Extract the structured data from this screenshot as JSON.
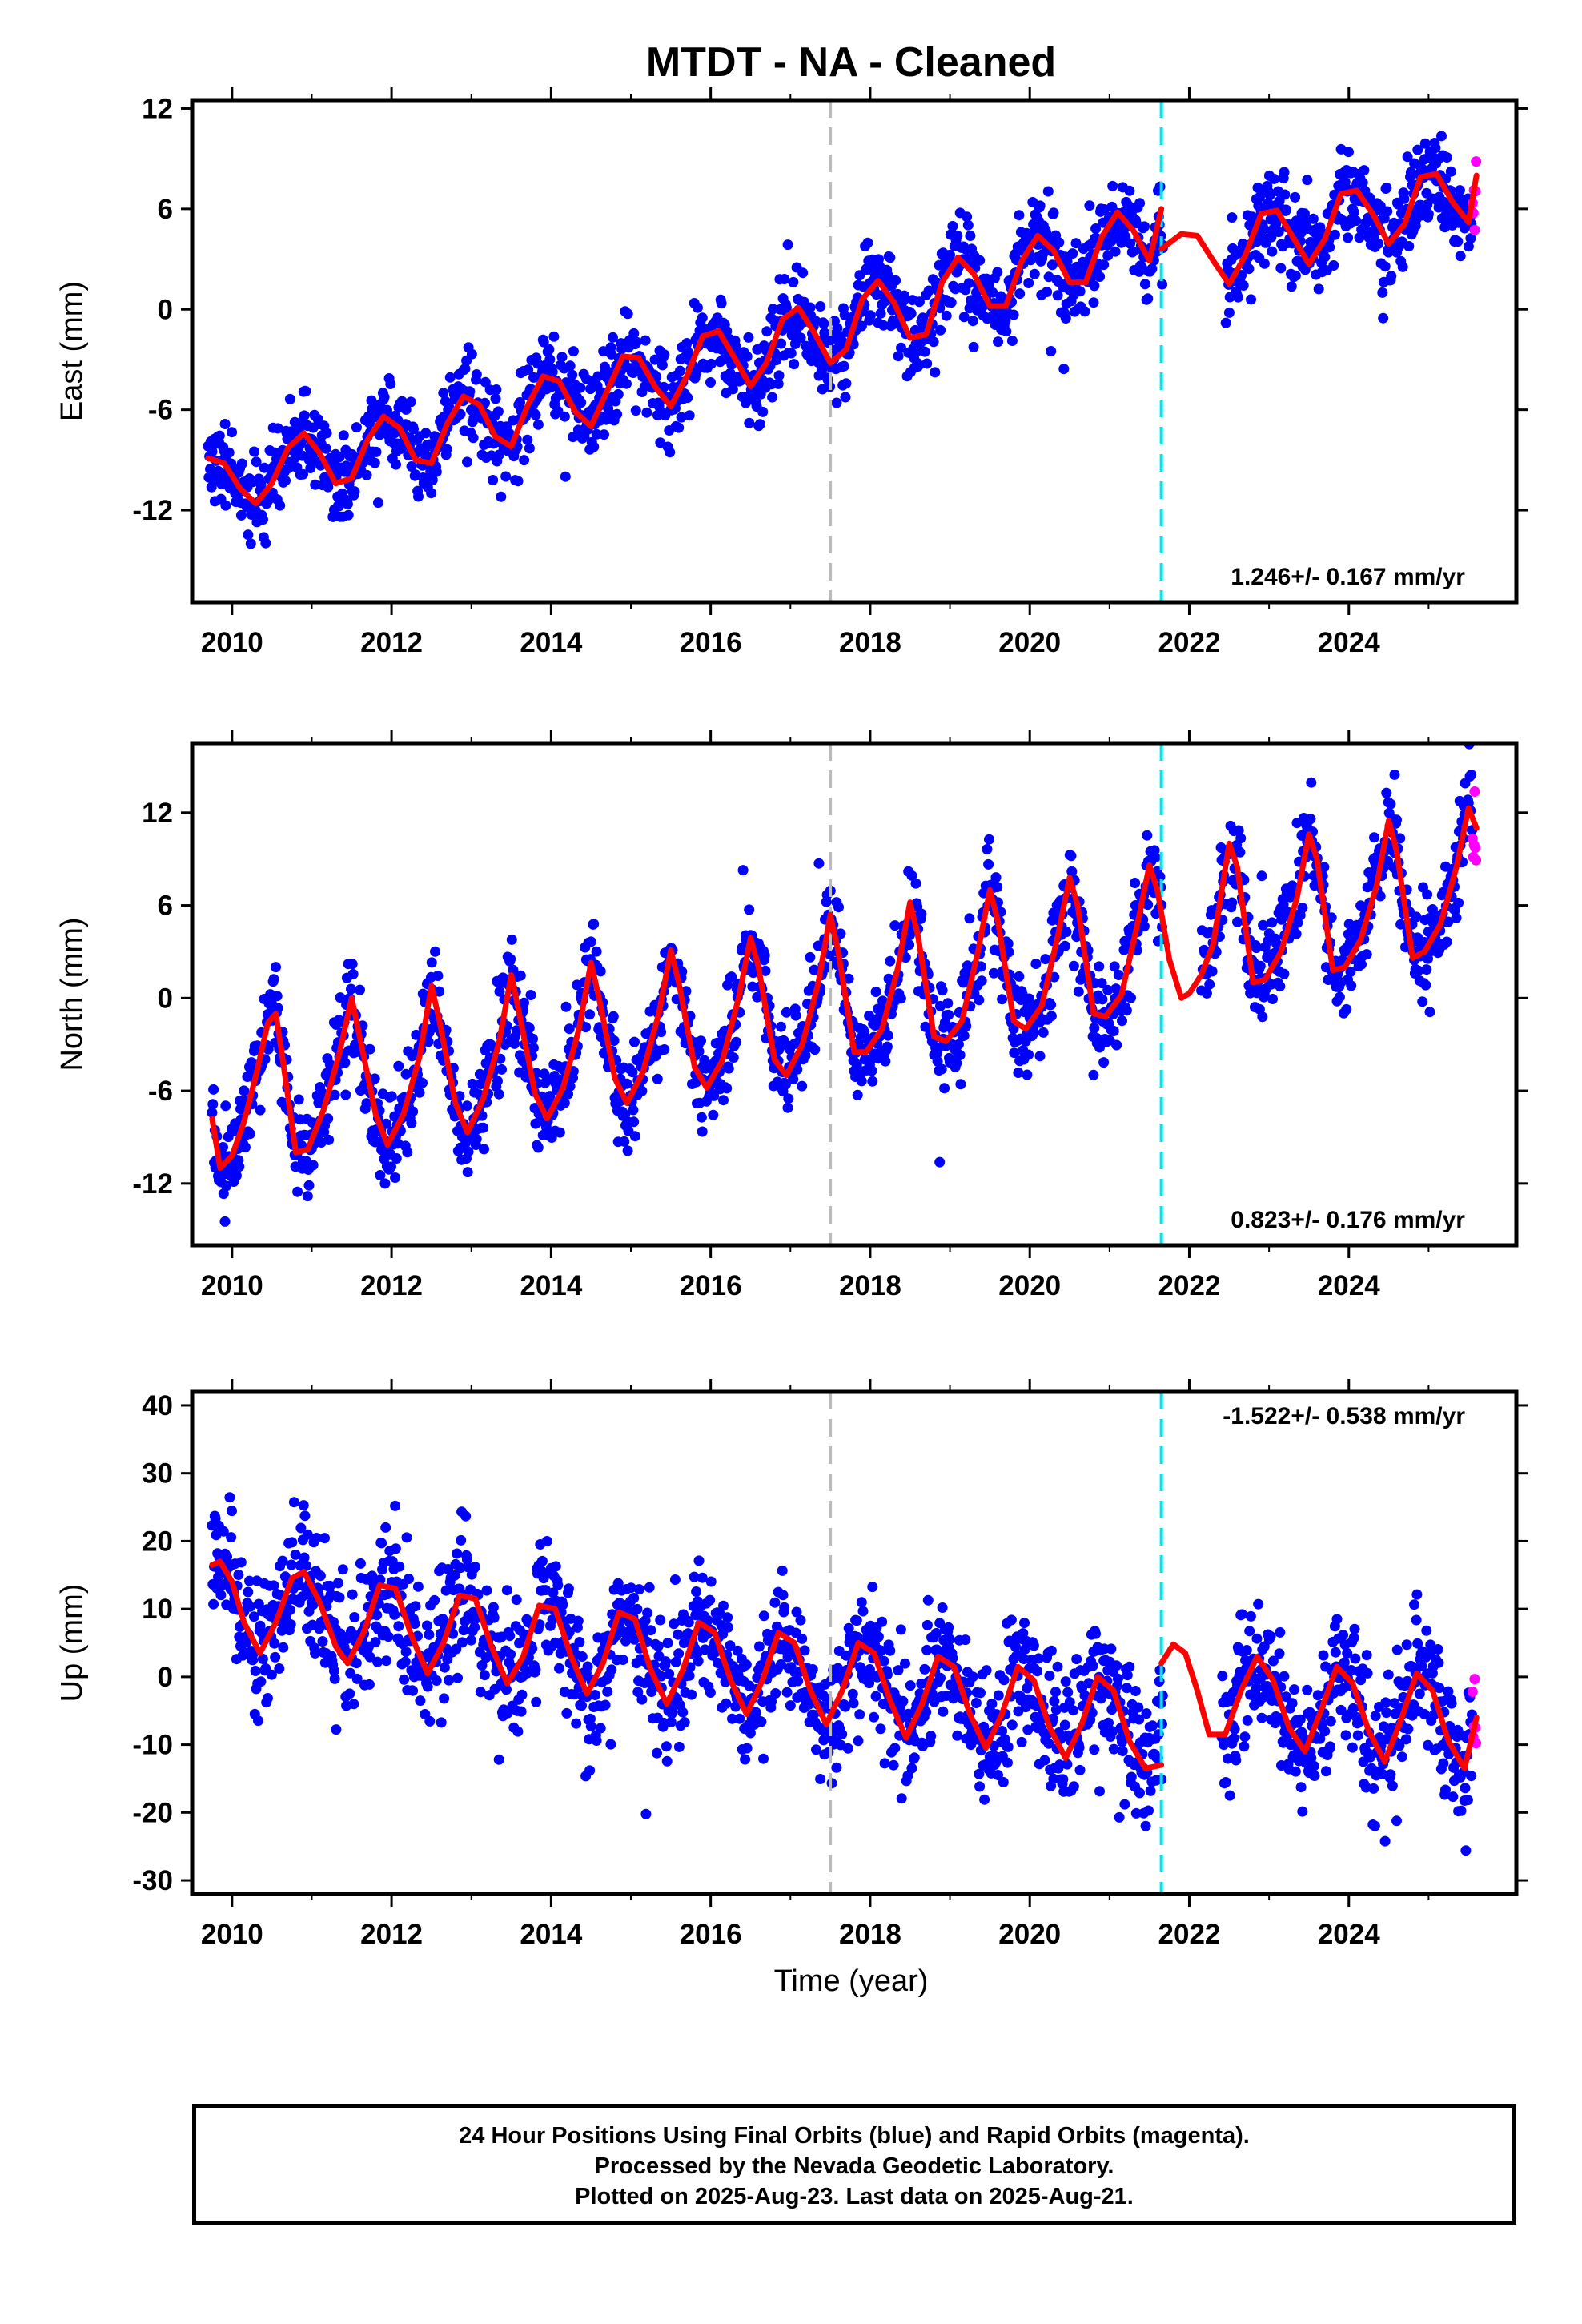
{
  "title": "MTDT  - NA - Cleaned",
  "xlabel": "Time (year)",
  "caption": {
    "line1": "24 Hour Positions Using Final Orbits (blue) and Rapid Orbits (magenta).",
    "line2": "Processed by the Nevada Geodetic Laboratory.",
    "line3": "Plotted on 2025-Aug-23. Last data on 2025-Aug-21."
  },
  "colors": {
    "final": "#0000ff",
    "rapid": "#ff00ff",
    "model": "#ff0000",
    "break_equipment": "#bbbbbb",
    "break_other": "#00e5ee"
  },
  "chart_data": [
    {
      "type": "scatter",
      "ylabel": "East (mm)",
      "xlim": [
        2009.5,
        2026.1
      ],
      "ylim": [
        -17.5,
        12.5
      ],
      "xticks": [
        2010,
        2012,
        2014,
        2016,
        2018,
        2020,
        2022,
        2024
      ],
      "yticks": [
        -12,
        -6,
        0,
        6,
        12
      ],
      "rate_label": "1.246+/- 0.167 mm/yr",
      "rate_label_position": "bottom-right",
      "breaks": {
        "equipment": 2017.5,
        "other": 2021.65
      },
      "gap": [
        2021.65,
        2022.45
      ],
      "rapid_from": 2025.55,
      "model": {
        "series": [
          {
            "x": [
              2009.7,
              2009.9,
              2010.1,
              2010.3,
              2010.5,
              2010.7,
              2010.9,
              2011.1,
              2011.3,
              2011.5,
              2011.7,
              2011.9,
              2012.1,
              2012.3,
              2012.5,
              2012.7,
              2012.9,
              2013.1,
              2013.3,
              2013.5,
              2013.7,
              2013.9,
              2014.1,
              2014.3,
              2014.5,
              2014.7,
              2014.9,
              2015.1,
              2015.3,
              2015.5,
              2015.7,
              2015.9,
              2016.1,
              2016.3,
              2016.5,
              2016.7,
              2016.9,
              2017.1,
              2017.3,
              2017.5,
              2017.7,
              2017.9,
              2018.1,
              2018.3,
              2018.5,
              2018.7,
              2018.9,
              2019.1,
              2019.3,
              2019.5,
              2019.7,
              2019.9,
              2020.1,
              2020.3,
              2020.5,
              2020.7,
              2020.9,
              2021.1,
              2021.3,
              2021.5,
              2021.65
            ],
            "y": [
              -8.9,
              -9.2,
              -10.7,
              -11.6,
              -10.4,
              -8.3,
              -7.4,
              -8.6,
              -10.4,
              -10.1,
              -7.8,
              -6.4,
              -7.1,
              -9.0,
              -9.2,
              -6.8,
              -5.2,
              -5.7,
              -7.6,
              -8.2,
              -5.8,
              -4.0,
              -4.3,
              -6.1,
              -7.0,
              -4.9,
              -2.8,
              -2.9,
              -4.6,
              -5.8,
              -4.0,
              -1.6,
              -1.3,
              -2.9,
              -4.6,
              -3.2,
              -0.6,
              0.1,
              -1.4,
              -3.2,
              -2.4,
              0.6,
              1.7,
              0.4,
              -1.7,
              -1.5,
              1.6,
              3.1,
              2.1,
              0.2,
              0.2,
              2.9,
              4.4,
              3.5,
              1.6,
              1.6,
              4.3,
              5.8,
              4.7,
              2.9,
              6.0
            ]
          },
          {
            "x": [
              2021.65,
              2021.9,
              2022.1,
              2022.3,
              2022.5,
              2022.7,
              2022.9,
              2023.1,
              2023.3,
              2023.5,
              2023.7,
              2023.9,
              2024.1,
              2024.3,
              2024.5,
              2024.7,
              2024.9,
              2025.1,
              2025.3,
              2025.5,
              2025.6
            ],
            "y": [
              3.6,
              4.5,
              4.4,
              2.9,
              1.5,
              3.2,
              5.7,
              5.9,
              4.3,
              2.7,
              4.2,
              6.9,
              7.1,
              5.7,
              3.9,
              5.1,
              7.9,
              8.1,
              6.4,
              5.2,
              8.0
            ]
          }
        ]
      }
    },
    {
      "type": "scatter",
      "ylabel": "North (mm)",
      "xlim": [
        2009.5,
        2026.1
      ],
      "ylim": [
        -16,
        16.5
      ],
      "xticks": [
        2010,
        2012,
        2014,
        2016,
        2018,
        2020,
        2022,
        2024
      ],
      "yticks": [
        -12,
        -6,
        0,
        6,
        12
      ],
      "rate_label": "0.823+/- 0.176 mm/yr",
      "rate_label_position": "bottom-right",
      "breaks": {
        "equipment": 2017.5,
        "other": 2021.65
      },
      "gap": [
        2021.65,
        2022.15
      ],
      "rapid_from": 2025.55,
      "model": {
        "series": [
          {
            "x": [
              2009.75,
              2009.85,
              2010.0,
              2010.15,
              2010.3,
              2010.45,
              2010.55,
              2010.65,
              2010.8,
              2010.95,
              2011.15,
              2011.35,
              2011.5,
              2011.6,
              2011.8,
              2011.95,
              2012.15,
              2012.35,
              2012.5,
              2012.6,
              2012.8,
              2012.95,
              2013.15,
              2013.35,
              2013.5,
              2013.6,
              2013.8,
              2013.95,
              2014.15,
              2014.35,
              2014.5,
              2014.6,
              2014.8,
              2014.95,
              2015.15,
              2015.35,
              2015.5,
              2015.6,
              2015.8,
              2015.95,
              2016.15,
              2016.35,
              2016.5,
              2016.6,
              2016.8,
              2016.95,
              2017.15,
              2017.35,
              2017.5,
              2017.6,
              2017.8,
              2017.95,
              2018.15,
              2018.35,
              2018.5,
              2018.6,
              2018.8,
              2018.95,
              2019.15,
              2019.35,
              2019.5,
              2019.6,
              2019.8,
              2019.95,
              2020.15,
              2020.35,
              2020.5,
              2020.6,
              2020.8,
              2020.95,
              2021.15,
              2021.35,
              2021.5,
              2021.6,
              2021.65
            ],
            "y": [
              -7.8,
              -11.0,
              -10.2,
              -8.0,
              -5.0,
              -1.6,
              -1.0,
              -4.5,
              -10.0,
              -9.8,
              -7.2,
              -3.5,
              0.0,
              -2.5,
              -7.5,
              -9.5,
              -7.5,
              -3.8,
              0.8,
              -1.5,
              -6.8,
              -8.7,
              -6.5,
              -2.8,
              1.5,
              -1.0,
              -6.2,
              -7.8,
              -5.8,
              -2.0,
              2.3,
              0.0,
              -5.2,
              -6.8,
              -4.8,
              -1.0,
              3.1,
              1.0,
              -4.5,
              -5.8,
              -4.0,
              0.0,
              3.9,
              2.0,
              -4.0,
              -5.0,
              -3.0,
              1.0,
              5.4,
              3.0,
              -3.5,
              -3.5,
              -2.0,
              2.0,
              6.2,
              4.0,
              -2.5,
              -2.8,
              -1.5,
              3.0,
              7.0,
              5.0,
              -1.5,
              -2.0,
              -0.5,
              4.0,
              7.8,
              6.0,
              -1.0,
              -1.2,
              0.2,
              4.8,
              8.6,
              7.0,
              5.5
            ]
          },
          {
            "x": [
              2021.65,
              2021.75,
              2021.9,
              2022.0,
              2022.15,
              2022.3,
              2022.5,
              2022.6,
              2022.8,
              2022.95,
              2023.15,
              2023.35,
              2023.5,
              2023.6,
              2023.8,
              2023.95,
              2024.15,
              2024.35,
              2024.5,
              2024.6,
              2024.8,
              2024.95,
              2025.15,
              2025.35,
              2025.5,
              2025.6
            ],
            "y": [
              5.5,
              2.5,
              0.0,
              0.3,
              1.5,
              3.5,
              10.0,
              8.5,
              1.0,
              1.2,
              3.0,
              6.5,
              10.6,
              9.0,
              1.8,
              2.0,
              3.8,
              7.3,
              11.5,
              9.5,
              2.6,
              3.0,
              4.8,
              8.5,
              12.3,
              11.0
            ]
          }
        ]
      }
    },
    {
      "type": "scatter",
      "ylabel": "Up (mm)",
      "xlim": [
        2009.5,
        2026.1
      ],
      "ylim": [
        -32,
        42
      ],
      "xticks": [
        2010,
        2012,
        2014,
        2016,
        2018,
        2020,
        2022,
        2024
      ],
      "yticks": [
        -30,
        -20,
        -10,
        0,
        10,
        20,
        30,
        40
      ],
      "rate_label": "-1.522+/- 0.538 mm/yr",
      "rate_label_position": "top-right",
      "breaks": {
        "equipment": 2017.5,
        "other": 2021.65
      },
      "gap": [
        2021.65,
        2022.4
      ],
      "rapid_from": 2025.55,
      "model": {
        "series": [
          {
            "x": [
              2009.75,
              2009.85,
              2010.0,
              2010.15,
              2010.35,
              2010.55,
              2010.75,
              2010.9,
              2011.1,
              2011.3,
              2011.45,
              2011.65,
              2011.85,
              2012.05,
              2012.25,
              2012.45,
              2012.65,
              2012.85,
              2013.05,
              2013.25,
              2013.45,
              2013.65,
              2013.85,
              2014.05,
              2014.25,
              2014.45,
              2014.65,
              2014.85,
              2015.05,
              2015.25,
              2015.45,
              2015.65,
              2015.85,
              2016.05,
              2016.25,
              2016.45,
              2016.65,
              2016.85,
              2017.05,
              2017.25,
              2017.45,
              2017.65,
              2017.85,
              2018.05,
              2018.25,
              2018.45,
              2018.65,
              2018.85,
              2019.05,
              2019.25,
              2019.45,
              2019.65,
              2019.85,
              2020.05,
              2020.25,
              2020.45,
              2020.65,
              2020.85,
              2021.05,
              2021.25,
              2021.45,
              2021.65
            ],
            "y": [
              16.5,
              17.0,
              14.0,
              8.0,
              3.5,
              8.0,
              14.5,
              15.5,
              11.0,
              4.5,
              2.0,
              6.5,
              13.5,
              13.0,
              6.0,
              0.5,
              5.0,
              12.0,
              11.5,
              4.5,
              -1.0,
              3.0,
              10.5,
              10.0,
              3.0,
              -2.5,
              2.0,
              9.5,
              8.5,
              1.0,
              -4.0,
              1.0,
              8.0,
              6.5,
              -0.5,
              -5.5,
              -0.5,
              6.5,
              5.0,
              -2.0,
              -7.0,
              -2.0,
              5.0,
              3.5,
              -3.5,
              -9.0,
              -4.0,
              3.0,
              1.5,
              -5.5,
              -10.5,
              -5.5,
              1.5,
              -0.5,
              -7.5,
              -12.0,
              -7.0,
              0.0,
              -2.0,
              -9.5,
              -13.5,
              -13.0
            ]
          },
          {
            "x": [
              2021.65,
              2021.8,
              2021.95,
              2022.1,
              2022.25,
              2022.45,
              2022.65,
              2022.85,
              2023.05,
              2023.25,
              2023.45,
              2023.65,
              2023.85,
              2024.05,
              2024.25,
              2024.45,
              2024.65,
              2024.85,
              2025.05,
              2025.25,
              2025.45,
              2025.6
            ],
            "y": [
              2.0,
              4.8,
              3.5,
              -2.0,
              -8.5,
              -8.5,
              -2.0,
              3.0,
              -0.5,
              -7.5,
              -11.0,
              -5.0,
              1.5,
              -1.0,
              -8.0,
              -12.5,
              -6.5,
              0.5,
              -2.0,
              -9.5,
              -13.5,
              -6.0
            ]
          }
        ]
      }
    }
  ]
}
